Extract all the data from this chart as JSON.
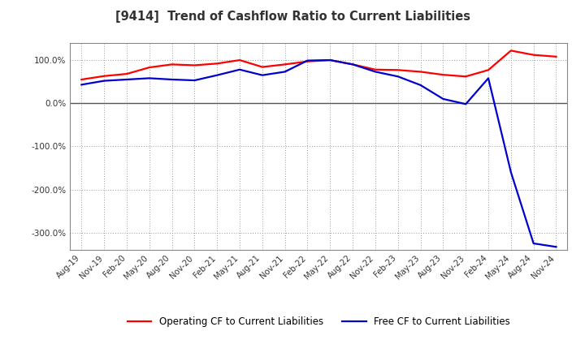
{
  "title": "[9414]  Trend of Cashflow Ratio to Current Liabilities",
  "x_labels": [
    "Aug-19",
    "Nov-19",
    "Feb-20",
    "May-20",
    "Aug-20",
    "Nov-20",
    "Feb-21",
    "May-21",
    "Aug-21",
    "Nov-21",
    "Feb-22",
    "May-22",
    "Aug-22",
    "Nov-22",
    "Feb-23",
    "May-23",
    "Aug-23",
    "Nov-23",
    "Feb-24",
    "May-24",
    "Aug-24",
    "Nov-24"
  ],
  "operating_cf": [
    55,
    63,
    68,
    83,
    90,
    88,
    92,
    100,
    84,
    90,
    97,
    100,
    90,
    78,
    77,
    73,
    66,
    62,
    77,
    122,
    112,
    108
  ],
  "free_cf": [
    43,
    52,
    55,
    58,
    55,
    53,
    65,
    78,
    65,
    73,
    99,
    100,
    90,
    73,
    62,
    42,
    10,
    -2,
    58,
    -160,
    -325,
    -333
  ],
  "ylim": [
    -340,
    140
  ],
  "yticks": [
    100,
    0,
    -100,
    -200,
    -300
  ],
  "operating_color": "#FF0000",
  "free_color": "#0000CD",
  "background_color": "#FFFFFF",
  "plot_bg_color": "#FFFFFF",
  "grid_color": "#999999",
  "title_color": "#333333",
  "legend_op_label": "Operating CF to Current Liabilities",
  "legend_free_label": "Free CF to Current Liabilities"
}
